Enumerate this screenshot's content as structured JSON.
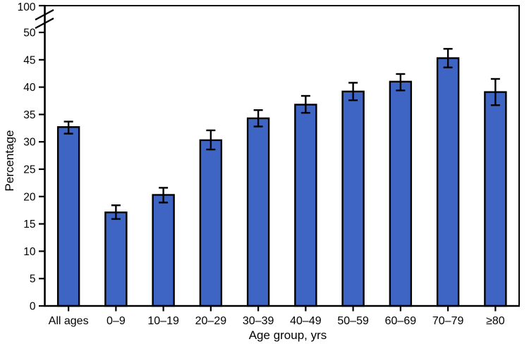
{
  "figure": {
    "background_color": "#ffffff",
    "text_color": "#000000"
  },
  "chart_data": {
    "type": "bar",
    "title": "",
    "xlabel": "Age group, yrs",
    "ylabel": "Percentage",
    "categories": [
      "All ages",
      "0–9",
      "10–19",
      "20–29",
      "30–39",
      "40–49",
      "50–59",
      "60–69",
      "70–79",
      "≥80"
    ],
    "values": [
      32.7,
      17.1,
      20.3,
      30.3,
      34.3,
      36.8,
      39.2,
      41.0,
      45.3,
      39.1
    ],
    "error_low": [
      31.5,
      15.9,
      18.9,
      28.6,
      32.8,
      35.3,
      37.6,
      39.4,
      43.6,
      36.7
    ],
    "error_high": [
      33.7,
      18.4,
      21.6,
      32.1,
      35.8,
      38.4,
      40.8,
      42.4,
      47.0,
      41.5
    ],
    "y_ticks": [
      0,
      5,
      10,
      15,
      20,
      25,
      30,
      35,
      40,
      45,
      50
    ],
    "y_break_top_label": "100",
    "axis_break": true,
    "ylim": [
      0,
      50
    ],
    "grid": false,
    "legend": null,
    "bar_color": "#3E64C4",
    "bar_border_color": "#000000",
    "error_bar_color": "#000000",
    "axis_color": "#000000"
  }
}
